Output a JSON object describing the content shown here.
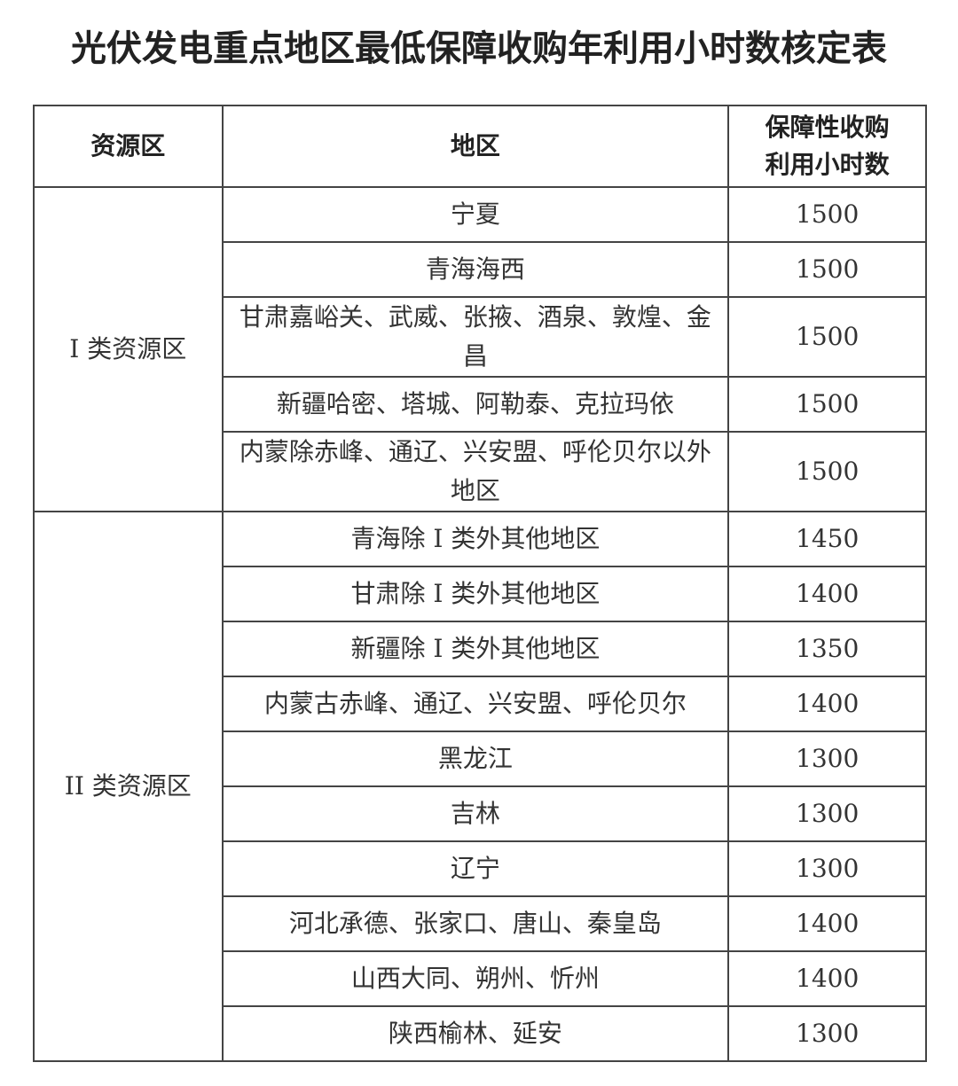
{
  "title": "光伏发电重点地区最低保障收购年利用小时数核定表",
  "headers": [
    "资源区",
    "地区",
    "保障性收购利用小时数"
  ],
  "header_lines": {
    "hours_line1": "保障性收购",
    "hours_line2": "利用小时数"
  },
  "groups": [
    {
      "zone": "I 类资源区",
      "rows": [
        {
          "region": "宁夏",
          "hours": "1500"
        },
        {
          "region": "青海海西",
          "hours": "1500"
        },
        {
          "region": "甘肃嘉峪关、武威、张掖、酒泉、敦煌、金昌",
          "hours": "1500"
        },
        {
          "region": "新疆哈密、塔城、阿勒泰、克拉玛依",
          "hours": "1500"
        },
        {
          "region": "内蒙除赤峰、通辽、兴安盟、呼伦贝尔以外地区",
          "hours": "1500"
        }
      ]
    },
    {
      "zone": "II 类资源区",
      "rows": [
        {
          "region": "青海除 I 类外其他地区",
          "hours": "1450"
        },
        {
          "region": "甘肃除 I 类外其他地区",
          "hours": "1400"
        },
        {
          "region": "新疆除 I 类外其他地区",
          "hours": "1350"
        },
        {
          "region": "内蒙古赤峰、通辽、兴安盟、呼伦贝尔",
          "hours": "1400"
        },
        {
          "region": "黑龙江",
          "hours": "1300"
        },
        {
          "region": "吉林",
          "hours": "1300"
        },
        {
          "region": "辽宁",
          "hours": "1300"
        },
        {
          "region": "河北承德、张家口、唐山、秦皇岛",
          "hours": "1400"
        },
        {
          "region": "山西大同、朔州、忻州",
          "hours": "1400"
        },
        {
          "region": "陕西榆林、延安",
          "hours": "1300"
        }
      ]
    }
  ]
}
